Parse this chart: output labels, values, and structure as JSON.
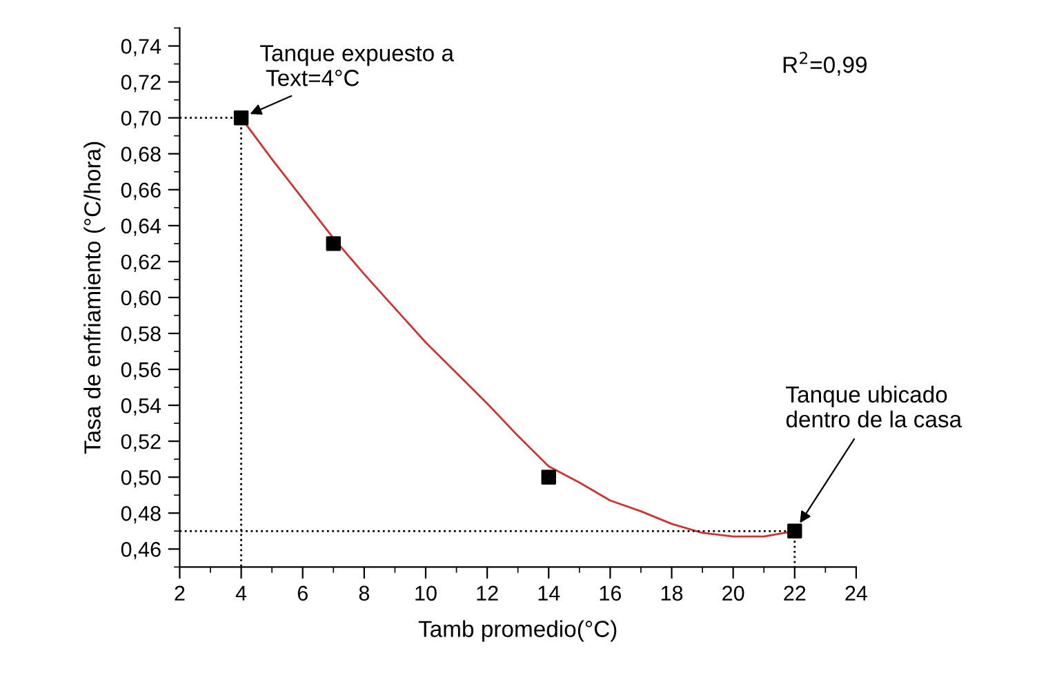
{
  "chart_data": {
    "type": "scatter",
    "xlabel": "Tamb promedio(°C)",
    "ylabel": "Tasa de enfriamiento (°C/hora)",
    "xlim": [
      2,
      24
    ],
    "xticks": [
      2,
      4,
      6,
      8,
      10,
      12,
      14,
      16,
      18,
      20,
      22,
      24
    ],
    "ylim": [
      0.45,
      0.75
    ],
    "yticks": [
      {
        "value": 0.46,
        "label": "0,46"
      },
      {
        "value": 0.48,
        "label": "0,48"
      },
      {
        "value": 0.5,
        "label": "0,50"
      },
      {
        "value": 0.52,
        "label": "0,52"
      },
      {
        "value": 0.54,
        "label": "0,54"
      },
      {
        "value": 0.56,
        "label": "0,56"
      },
      {
        "value": 0.58,
        "label": "0,58"
      },
      {
        "value": 0.6,
        "label": "0,60"
      },
      {
        "value": 0.62,
        "label": "0,62"
      },
      {
        "value": 0.64,
        "label": "0,64"
      },
      {
        "value": 0.66,
        "label": "0,66"
      },
      {
        "value": 0.68,
        "label": "0,68"
      },
      {
        "value": 0.7,
        "label": "0,70"
      },
      {
        "value": 0.72,
        "label": "0,72"
      },
      {
        "value": 0.74,
        "label": "0,74"
      }
    ],
    "grid": false,
    "legend": false,
    "series": [
      {
        "type": "line",
        "marker": "none",
        "color": "#cc3333",
        "line_style": "solid",
        "x": [
          4,
          5,
          6,
          7,
          8,
          9,
          10,
          11,
          12,
          13,
          14,
          15,
          16,
          17,
          18,
          19,
          20,
          21,
          22
        ],
        "values": [
          0.7,
          0.677,
          0.655,
          0.633,
          0.613,
          0.594,
          0.575,
          0.558,
          0.541,
          0.523,
          0.506,
          0.497,
          0.487,
          0.481,
          0.474,
          0.469,
          0.467,
          0.467,
          0.47
        ]
      },
      {
        "type": "line",
        "marker": "none",
        "color": "#000000",
        "line_style": "dotted",
        "x": [
          2,
          4,
          4
        ],
        "values": [
          0.7,
          0.7,
          0.45
        ]
      },
      {
        "type": "line",
        "marker": "none",
        "color": "#000000",
        "line_style": "dotted",
        "x": [
          2,
          22,
          22
        ],
        "values": [
          0.47,
          0.47,
          0.45
        ]
      },
      {
        "marker": "square",
        "color": "#000000",
        "x": [
          4,
          7,
          14,
          22
        ],
        "values": [
          0.7,
          0.63,
          0.5,
          0.47
        ]
      }
    ],
    "annotations": [
      {
        "text": "Tanque expuesto a\n Text=4°C",
        "x": 4,
        "y": 0.7
      },
      {
        "text": "Tanque ubicado\ndentro de la casa",
        "x": 22,
        "y": 0.47
      },
      "R$^{2}$=0,99"
    ]
  }
}
